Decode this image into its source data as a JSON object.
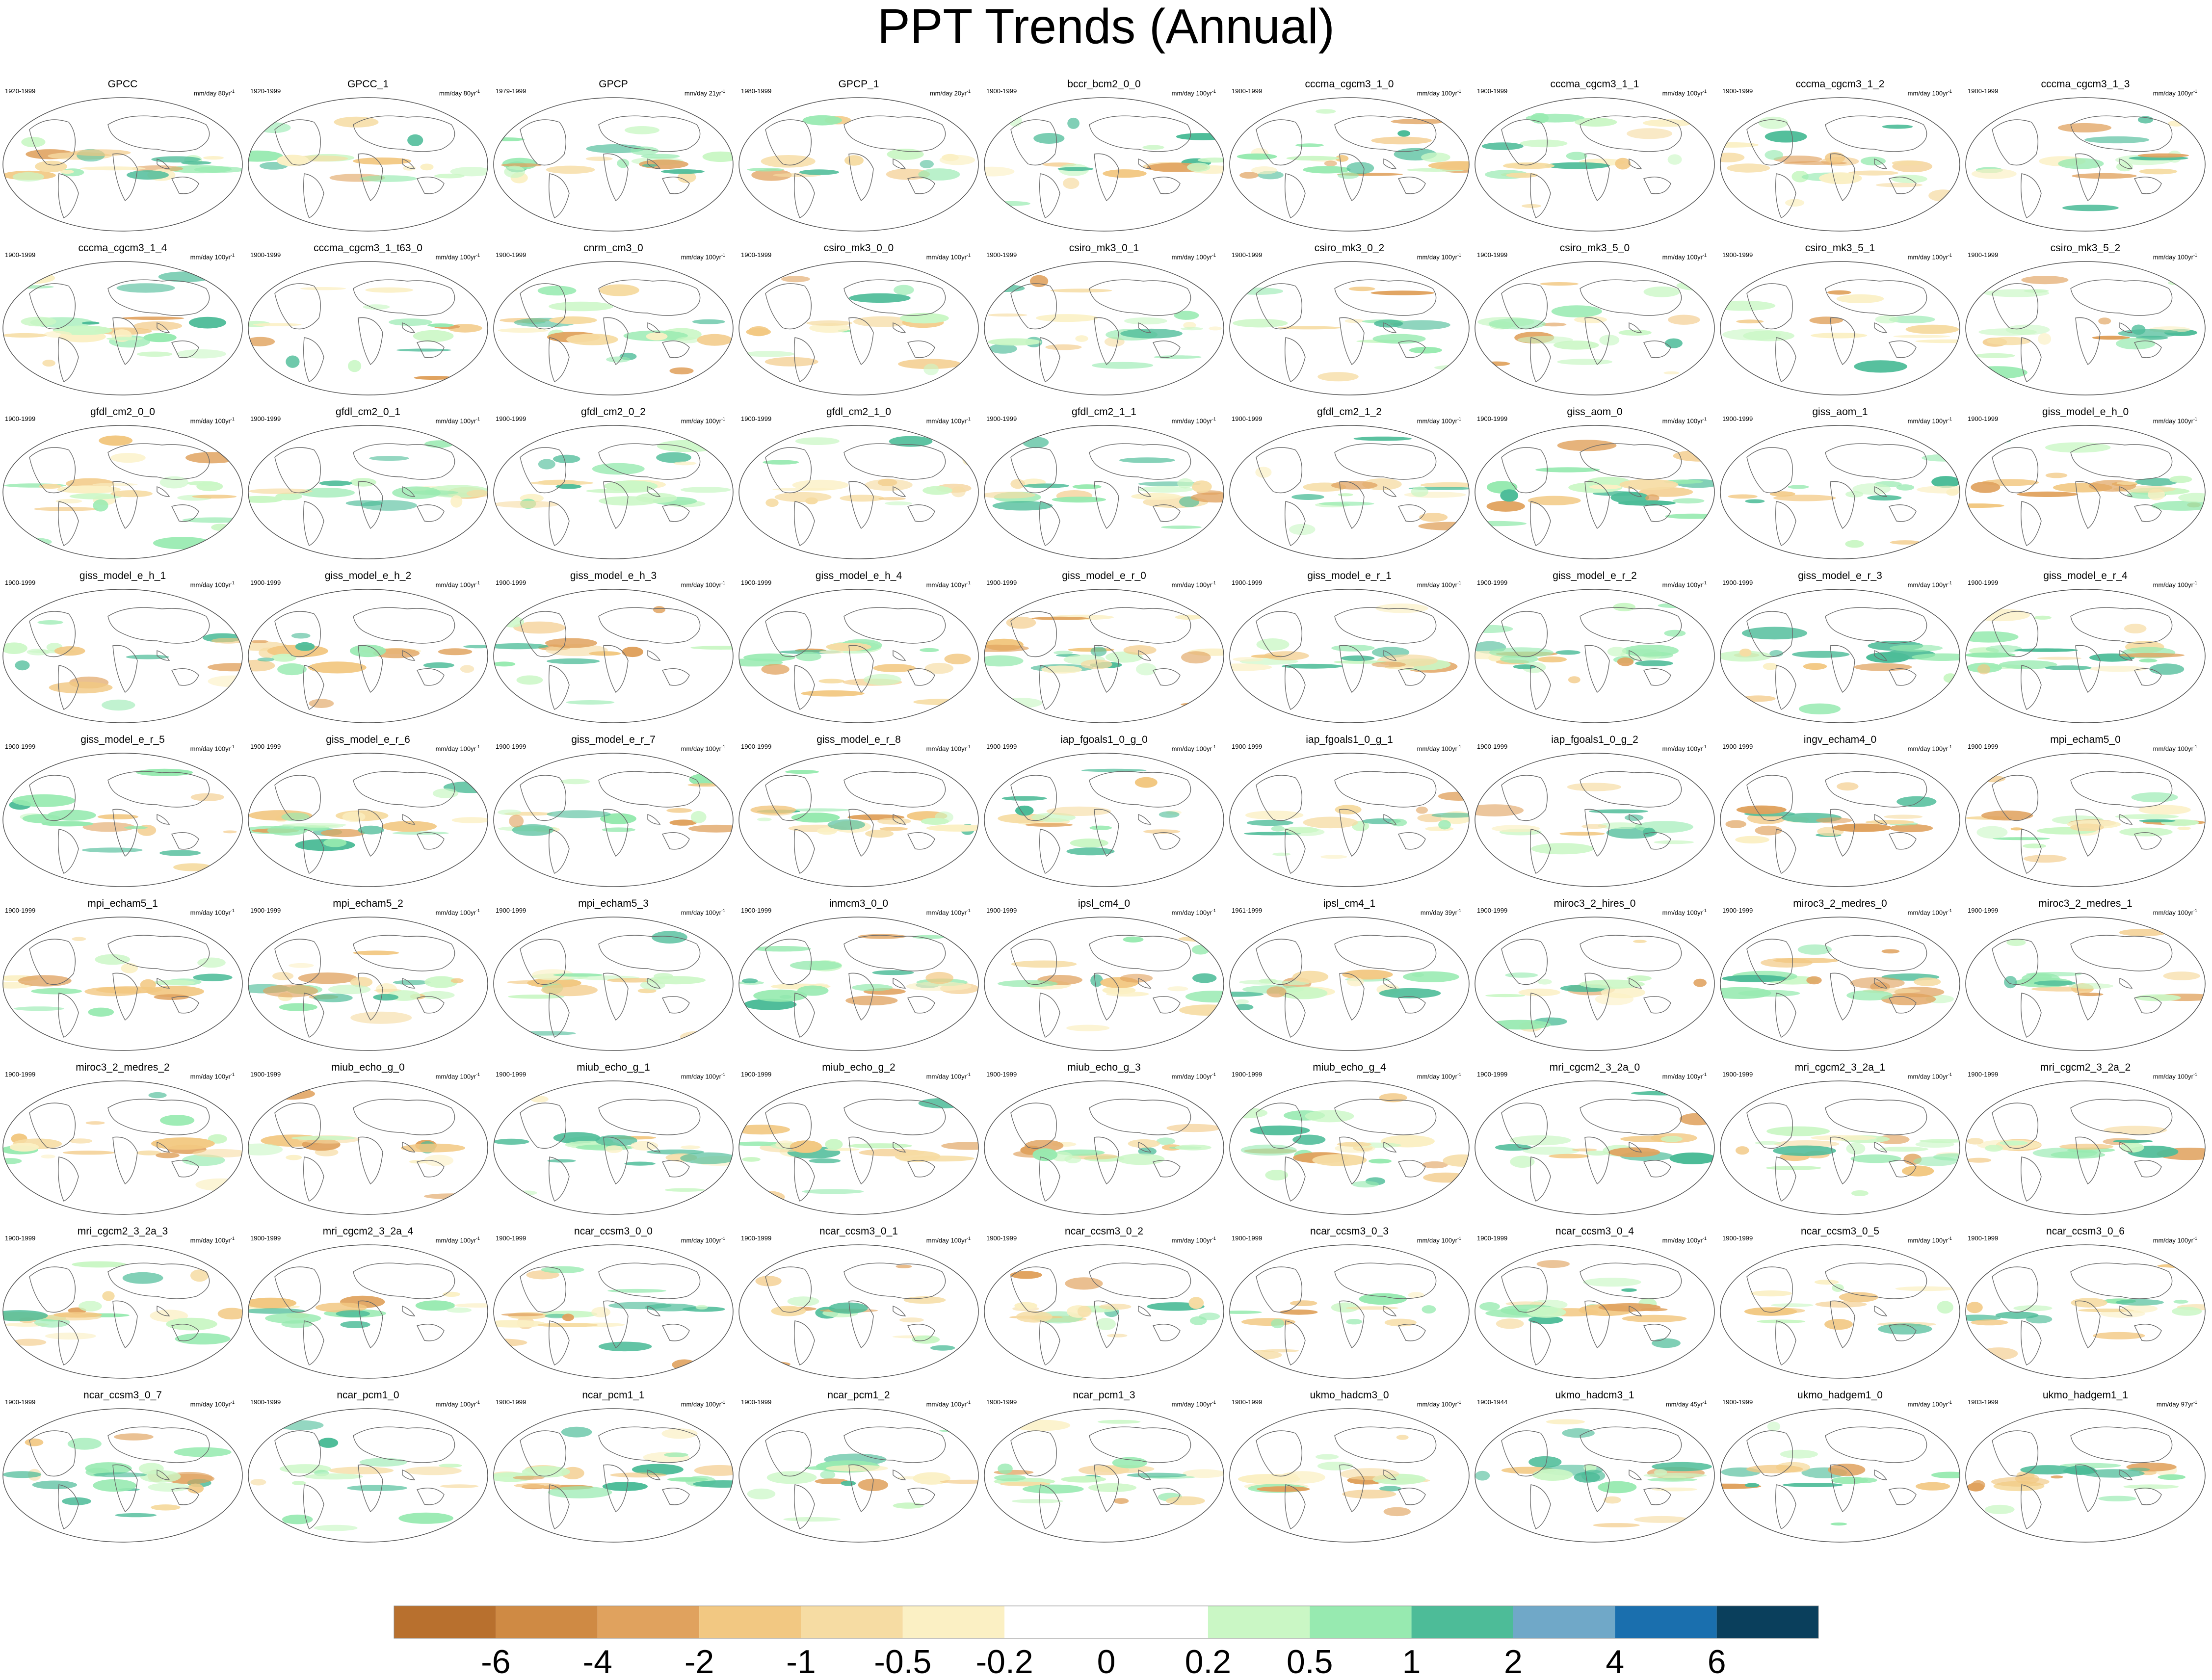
{
  "title": "PPT Trends (Annual)",
  "panels": [
    {
      "name": "GPCC",
      "period": "1920-1999",
      "unit": "mm/day 80yr",
      "sup": "-1"
    },
    {
      "name": "GPCC_1",
      "period": "1920-1999",
      "unit": "mm/day 80yr",
      "sup": "-1"
    },
    {
      "name": "GPCP",
      "period": "1979-1999",
      "unit": "mm/day 21yr",
      "sup": "-1"
    },
    {
      "name": "GPCP_1",
      "period": "1980-1999",
      "unit": "mm/day 20yr",
      "sup": "-1"
    },
    {
      "name": "bccr_bcm2_0_0",
      "period": "1900-1999",
      "unit": "mm/day 100yr",
      "sup": "-1"
    },
    {
      "name": "cccma_cgcm3_1_0",
      "period": "1900-1999",
      "unit": "mm/day 100yr",
      "sup": "-1"
    },
    {
      "name": "cccma_cgcm3_1_1",
      "period": "1900-1999",
      "unit": "mm/day 100yr",
      "sup": "-1"
    },
    {
      "name": "cccma_cgcm3_1_2",
      "period": "1900-1999",
      "unit": "mm/day 100yr",
      "sup": "-1"
    },
    {
      "name": "cccma_cgcm3_1_3",
      "period": "1900-1999",
      "unit": "mm/day 100yr",
      "sup": "-1"
    },
    {
      "name": "cccma_cgcm3_1_4",
      "period": "1900-1999",
      "unit": "mm/day 100yr",
      "sup": "-1"
    },
    {
      "name": "cccma_cgcm3_1_t63_0",
      "period": "1900-1999",
      "unit": "mm/day 100yr",
      "sup": "-1"
    },
    {
      "name": "cnrm_cm3_0",
      "period": "1900-1999",
      "unit": "mm/day 100yr",
      "sup": "-1"
    },
    {
      "name": "csiro_mk3_0_0",
      "period": "1900-1999",
      "unit": "mm/day 100yr",
      "sup": "-1"
    },
    {
      "name": "csiro_mk3_0_1",
      "period": "1900-1999",
      "unit": "mm/day 100yr",
      "sup": "-1"
    },
    {
      "name": "csiro_mk3_0_2",
      "period": "1900-1999",
      "unit": "mm/day 100yr",
      "sup": "-1"
    },
    {
      "name": "csiro_mk3_5_0",
      "period": "1900-1999",
      "unit": "mm/day 100yr",
      "sup": "-1"
    },
    {
      "name": "csiro_mk3_5_1",
      "period": "1900-1999",
      "unit": "mm/day 100yr",
      "sup": "-1"
    },
    {
      "name": "csiro_mk3_5_2",
      "period": "1900-1999",
      "unit": "mm/day 100yr",
      "sup": "-1"
    },
    {
      "name": "gfdl_cm2_0_0",
      "period": "1900-1999",
      "unit": "mm/day 100yr",
      "sup": "-1"
    },
    {
      "name": "gfdl_cm2_0_1",
      "period": "1900-1999",
      "unit": "mm/day 100yr",
      "sup": "-1"
    },
    {
      "name": "gfdl_cm2_0_2",
      "period": "1900-1999",
      "unit": "mm/day 100yr",
      "sup": "-1"
    },
    {
      "name": "gfdl_cm2_1_0",
      "period": "1900-1999",
      "unit": "mm/day 100yr",
      "sup": "-1"
    },
    {
      "name": "gfdl_cm2_1_1",
      "period": "1900-1999",
      "unit": "mm/day 100yr",
      "sup": "-1"
    },
    {
      "name": "gfdl_cm2_1_2",
      "period": "1900-1999",
      "unit": "mm/day 100yr",
      "sup": "-1"
    },
    {
      "name": "giss_aom_0",
      "period": "1900-1999",
      "unit": "mm/day 100yr",
      "sup": "-1"
    },
    {
      "name": "giss_aom_1",
      "period": "1900-1999",
      "unit": "mm/day 100yr",
      "sup": "-1"
    },
    {
      "name": "giss_model_e_h_0",
      "period": "1900-1999",
      "unit": "mm/day 100yr",
      "sup": "-1"
    },
    {
      "name": "giss_model_e_h_1",
      "period": "1900-1999",
      "unit": "mm/day 100yr",
      "sup": "-1"
    },
    {
      "name": "giss_model_e_h_2",
      "period": "1900-1999",
      "unit": "mm/day 100yr",
      "sup": "-1"
    },
    {
      "name": "giss_model_e_h_3",
      "period": "1900-1999",
      "unit": "mm/day 100yr",
      "sup": "-1"
    },
    {
      "name": "giss_model_e_h_4",
      "period": "1900-1999",
      "unit": "mm/day 100yr",
      "sup": "-1"
    },
    {
      "name": "giss_model_e_r_0",
      "period": "1900-1999",
      "unit": "mm/day 100yr",
      "sup": "-1"
    },
    {
      "name": "giss_model_e_r_1",
      "period": "1900-1999",
      "unit": "mm/day 100yr",
      "sup": "-1"
    },
    {
      "name": "giss_model_e_r_2",
      "period": "1900-1999",
      "unit": "mm/day 100yr",
      "sup": "-1"
    },
    {
      "name": "giss_model_e_r_3",
      "period": "1900-1999",
      "unit": "mm/day 100yr",
      "sup": "-1"
    },
    {
      "name": "giss_model_e_r_4",
      "period": "1900-1999",
      "unit": "mm/day 100yr",
      "sup": "-1"
    },
    {
      "name": "giss_model_e_r_5",
      "period": "1900-1999",
      "unit": "mm/day 100yr",
      "sup": "-1"
    },
    {
      "name": "giss_model_e_r_6",
      "period": "1900-1999",
      "unit": "mm/day 100yr",
      "sup": "-1"
    },
    {
      "name": "giss_model_e_r_7",
      "period": "1900-1999",
      "unit": "mm/day 100yr",
      "sup": "-1"
    },
    {
      "name": "giss_model_e_r_8",
      "period": "1900-1999",
      "unit": "mm/day 100yr",
      "sup": "-1"
    },
    {
      "name": "iap_fgoals1_0_g_0",
      "period": "1900-1999",
      "unit": "mm/day 100yr",
      "sup": "-1"
    },
    {
      "name": "iap_fgoals1_0_g_1",
      "period": "1900-1999",
      "unit": "mm/day 100yr",
      "sup": "-1"
    },
    {
      "name": "iap_fgoals1_0_g_2",
      "period": "1900-1999",
      "unit": "mm/day 100yr",
      "sup": "-1"
    },
    {
      "name": "ingv_echam4_0",
      "period": "1900-1999",
      "unit": "mm/day 100yr",
      "sup": "-1"
    },
    {
      "name": "mpi_echam5_0",
      "period": "1900-1999",
      "unit": "mm/day 100yr",
      "sup": "-1"
    },
    {
      "name": "mpi_echam5_1",
      "period": "1900-1999",
      "unit": "mm/day 100yr",
      "sup": "-1"
    },
    {
      "name": "mpi_echam5_2",
      "period": "1900-1999",
      "unit": "mm/day 100yr",
      "sup": "-1"
    },
    {
      "name": "mpi_echam5_3",
      "period": "1900-1999",
      "unit": "mm/day 100yr",
      "sup": "-1"
    },
    {
      "name": "inmcm3_0_0",
      "period": "1900-1999",
      "unit": "mm/day 100yr",
      "sup": "-1"
    },
    {
      "name": "ipsl_cm4_0",
      "period": "1900-1999",
      "unit": "mm/day 100yr",
      "sup": "-1"
    },
    {
      "name": "ipsl_cm4_1",
      "period": "1961-1999",
      "unit": "mm/day 39yr",
      "sup": "-1"
    },
    {
      "name": "miroc3_2_hires_0",
      "period": "1900-1999",
      "unit": "mm/day 100yr",
      "sup": "-1"
    },
    {
      "name": "miroc3_2_medres_0",
      "period": "1900-1999",
      "unit": "mm/day 100yr",
      "sup": "-1"
    },
    {
      "name": "miroc3_2_medres_1",
      "period": "1900-1999",
      "unit": "mm/day 100yr",
      "sup": "-1"
    },
    {
      "name": "miroc3_2_medres_2",
      "period": "1900-1999",
      "unit": "mm/day 100yr",
      "sup": "-1"
    },
    {
      "name": "miub_echo_g_0",
      "period": "1900-1999",
      "unit": "mm/day 100yr",
      "sup": "-1"
    },
    {
      "name": "miub_echo_g_1",
      "period": "1900-1999",
      "unit": "mm/day 100yr",
      "sup": "-1"
    },
    {
      "name": "miub_echo_g_2",
      "period": "1900-1999",
      "unit": "mm/day 100yr",
      "sup": "-1"
    },
    {
      "name": "miub_echo_g_3",
      "period": "1900-1999",
      "unit": "mm/day 100yr",
      "sup": "-1"
    },
    {
      "name": "miub_echo_g_4",
      "period": "1900-1999",
      "unit": "mm/day 100yr",
      "sup": "-1"
    },
    {
      "name": "mri_cgcm2_3_2a_0",
      "period": "1900-1999",
      "unit": "mm/day 100yr",
      "sup": "-1"
    },
    {
      "name": "mri_cgcm2_3_2a_1",
      "period": "1900-1999",
      "unit": "mm/day 100yr",
      "sup": "-1"
    },
    {
      "name": "mri_cgcm2_3_2a_2",
      "period": "1900-1999",
      "unit": "mm/day 100yr",
      "sup": "-1"
    },
    {
      "name": "mri_cgcm2_3_2a_3",
      "period": "1900-1999",
      "unit": "mm/day 100yr",
      "sup": "-1"
    },
    {
      "name": "mri_cgcm2_3_2a_4",
      "period": "1900-1999",
      "unit": "mm/day 100yr",
      "sup": "-1"
    },
    {
      "name": "ncar_ccsm3_0_0",
      "period": "1900-1999",
      "unit": "mm/day 100yr",
      "sup": "-1"
    },
    {
      "name": "ncar_ccsm3_0_1",
      "period": "1900-1999",
      "unit": "mm/day 100yr",
      "sup": "-1"
    },
    {
      "name": "ncar_ccsm3_0_2",
      "period": "1900-1999",
      "unit": "mm/day 100yr",
      "sup": "-1"
    },
    {
      "name": "ncar_ccsm3_0_3",
      "period": "1900-1999",
      "unit": "mm/day 100yr",
      "sup": "-1"
    },
    {
      "name": "ncar_ccsm3_0_4",
      "period": "1900-1999",
      "unit": "mm/day 100yr",
      "sup": "-1"
    },
    {
      "name": "ncar_ccsm3_0_5",
      "period": "1900-1999",
      "unit": "mm/day 100yr",
      "sup": "-1"
    },
    {
      "name": "ncar_ccsm3_0_6",
      "period": "1900-1999",
      "unit": "mm/day 100yr",
      "sup": "-1"
    },
    {
      "name": "ncar_ccsm3_0_7",
      "period": "1900-1999",
      "unit": "mm/day 100yr",
      "sup": "-1"
    },
    {
      "name": "ncar_pcm1_0",
      "period": "1900-1999",
      "unit": "mm/day 100yr",
      "sup": "-1"
    },
    {
      "name": "ncar_pcm1_1",
      "period": "1900-1999",
      "unit": "mm/day 100yr",
      "sup": "-1"
    },
    {
      "name": "ncar_pcm1_2",
      "period": "1900-1999",
      "unit": "mm/day 100yr",
      "sup": "-1"
    },
    {
      "name": "ncar_pcm1_3",
      "period": "1900-1999",
      "unit": "mm/day 100yr",
      "sup": "-1"
    },
    {
      "name": "ukmo_hadcm3_0",
      "period": "1900-1999",
      "unit": "mm/day 100yr",
      "sup": "-1"
    },
    {
      "name": "ukmo_hadcm3_1",
      "period": "1900-1944",
      "unit": "mm/day 45yr",
      "sup": "-1"
    },
    {
      "name": "ukmo_hadgem1_0",
      "period": "1900-1999",
      "unit": "mm/day 100yr",
      "sup": "-1"
    },
    {
      "name": "ukmo_hadgem1_1",
      "period": "1903-1999",
      "unit": "mm/day 97yr",
      "sup": "-1"
    }
  ],
  "colorbar": {
    "colors": [
      "#b8702e",
      "#cf8a44",
      "#e0a25e",
      "#f2c882",
      "#f6dca3",
      "#fbf0c4",
      "#ffffff",
      "#ffffff",
      "#caf7c5",
      "#97eab0",
      "#4dbc98",
      "#70a8c8",
      "#1a6fae",
      "#0a3f5c"
    ],
    "labels": [
      "-6",
      "-4",
      "-2",
      "-1",
      "-0.5",
      "-0.2",
      "0",
      "0.2",
      "0.5",
      "1",
      "2",
      "4",
      "6"
    ]
  },
  "chart_data": {
    "type": "heatmap",
    "title": "PPT Trends (Annual)",
    "units": "mm/day per period",
    "color_levels": [
      -6,
      -4,
      -2,
      -1,
      -0.5,
      -0.2,
      0,
      0.2,
      0.5,
      1,
      2,
      4,
      6
    ],
    "grid": "9 columns x 9 rows of global precipitation trend maps",
    "n_panels": 81
  }
}
